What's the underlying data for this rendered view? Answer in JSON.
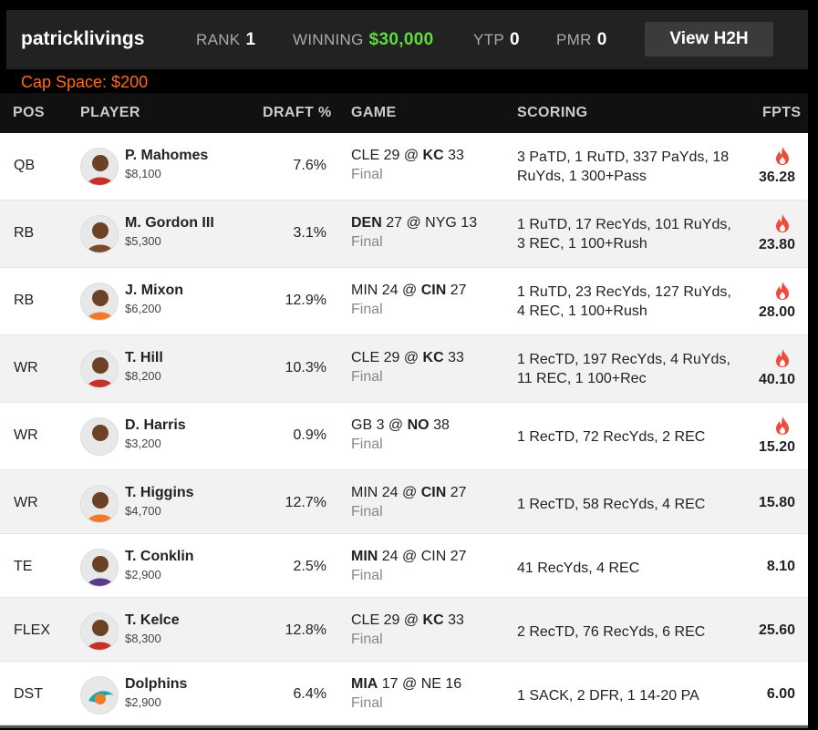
{
  "header": {
    "username": "patricklivings",
    "rank_label": "RANK",
    "rank_value": "1",
    "winning_label": "WINNING",
    "winning_value": "$30,000",
    "ytp_label": "YTP",
    "ytp_value": "0",
    "pmr_label": "PMR",
    "pmr_value": "0",
    "h2h_button": "View H2H"
  },
  "cap_space": "Cap Space: $200",
  "columns": {
    "pos": "POS",
    "player": "PLAYER",
    "draft": "DRAFT %",
    "game": "GAME",
    "scoring": "SCORING",
    "fpts": "FPTS"
  },
  "rows": [
    {
      "pos": "QB",
      "name": "P. Mahomes",
      "salary": "$8,100",
      "draft": "7.6%",
      "away": "CLE",
      "away_score": "29",
      "home": "KC",
      "home_score": "33",
      "bold": "home",
      "status": "Final",
      "scoring": "3 PaTD, 1 RuTD, 337 PaYds, 18 RuYds, 1 300+Pass",
      "fpts": "36.28",
      "fire": true
    },
    {
      "pos": "RB",
      "name": "M. Gordon III",
      "salary": "$5,300",
      "draft": "3.1%",
      "away": "DEN",
      "away_score": "27",
      "home": "NYG",
      "home_score": "13",
      "bold": "away",
      "status": "Final",
      "scoring": "1 RuTD, 17 RecYds, 101 RuYds, 3 REC, 1 100+Rush",
      "fpts": "23.80",
      "fire": true
    },
    {
      "pos": "RB",
      "name": "J. Mixon",
      "salary": "$6,200",
      "draft": "12.9%",
      "away": "MIN",
      "away_score": "24",
      "home": "CIN",
      "home_score": "27",
      "bold": "home",
      "status": "Final",
      "scoring": "1 RuTD, 23 RecYds, 127 RuYds, 4 REC, 1 100+Rush",
      "fpts": "28.00",
      "fire": true
    },
    {
      "pos": "WR",
      "name": "T. Hill",
      "salary": "$8,200",
      "draft": "10.3%",
      "away": "CLE",
      "away_score": "29",
      "home": "KC",
      "home_score": "33",
      "bold": "home",
      "status": "Final",
      "scoring": "1 RecTD, 197 RecYds, 4 RuYds, 11 REC, 1 100+Rec",
      "fpts": "40.10",
      "fire": true
    },
    {
      "pos": "WR",
      "name": "D. Harris",
      "salary": "$3,200",
      "draft": "0.9%",
      "away": "GB",
      "away_score": "3",
      "home": "NO",
      "home_score": "38",
      "bold": "home",
      "status": "Final",
      "scoring": "1 RecTD, 72 RecYds, 2 REC",
      "fpts": "15.20",
      "fire": true
    },
    {
      "pos": "WR",
      "name": "T. Higgins",
      "salary": "$4,700",
      "draft": "12.7%",
      "away": "MIN",
      "away_score": "24",
      "home": "CIN",
      "home_score": "27",
      "bold": "home",
      "status": "Final",
      "scoring": "1 RecTD, 58 RecYds, 4 REC",
      "fpts": "15.80",
      "fire": false
    },
    {
      "pos": "TE",
      "name": "T. Conklin",
      "salary": "$2,900",
      "draft": "2.5%",
      "away": "MIN",
      "away_score": "24",
      "home": "CIN",
      "home_score": "27",
      "bold": "away",
      "status": "Final",
      "scoring": "41 RecYds, 4 REC",
      "fpts": "8.10",
      "fire": false
    },
    {
      "pos": "FLEX",
      "name": "T. Kelce",
      "salary": "$8,300",
      "draft": "12.8%",
      "away": "CLE",
      "away_score": "29",
      "home": "KC",
      "home_score": "33",
      "bold": "home",
      "status": "Final",
      "scoring": "2 RecTD, 76 RecYds, 6 REC",
      "fpts": "25.60",
      "fire": false
    },
    {
      "pos": "DST",
      "name": "Dolphins",
      "salary": "$2,900",
      "draft": "6.4%",
      "away": "MIA",
      "away_score": "17",
      "home": "NE",
      "home_score": "16",
      "bold": "away",
      "status": "Final",
      "scoring": "1 SACK, 2 DFR, 1 14-20 PA",
      "fpts": "6.00",
      "fire": false
    }
  ],
  "colors": {
    "winning": "#5fdc3a",
    "cap_space": "#ff6a1a",
    "fire": "#f04a3a",
    "header_bg": "#222222"
  }
}
